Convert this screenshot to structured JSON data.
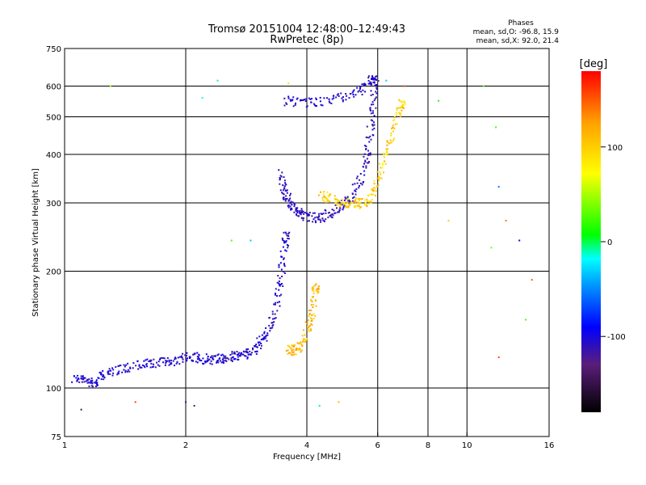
{
  "chart_data": {
    "type": "scatter",
    "title": "Tromsø 20151004 12:48:00–12:49:43",
    "subtitle": "RwPretec (8p)",
    "stats": {
      "heading": "Phases",
      "line_o": "mean, sd,O: -96.8, 15.9",
      "line_x": "mean, sd,X:  92.0, 21.4"
    },
    "xlabel": "Frequency [MHz]",
    "ylabel": "Stationary phase Virtual Height [km]",
    "x_scale": "log",
    "y_scale": "log",
    "xlim": [
      1,
      16
    ],
    "ylim": [
      75,
      750
    ],
    "x_ticks": [
      {
        "v": 1,
        "label": "1"
      },
      {
        "v": 2,
        "label": "2"
      },
      {
        "v": 4,
        "label": "4"
      },
      {
        "v": 6,
        "label": "6"
      },
      {
        "v": 8,
        "label": "8"
      },
      {
        "v": 10,
        "label": "10"
      },
      {
        "v": 16,
        "label": "16"
      }
    ],
    "y_ticks": [
      {
        "v": 75,
        "label": "75"
      },
      {
        "v": 100,
        "label": "100"
      },
      {
        "v": 200,
        "label": "200"
      },
      {
        "v": 300,
        "label": "300"
      },
      {
        "v": 400,
        "label": "400"
      },
      {
        "v": 500,
        "label": "500"
      },
      {
        "v": 600,
        "label": "600"
      },
      {
        "v": 750,
        "label": "750"
      }
    ],
    "x_gridlines": [
      2,
      4,
      6,
      8,
      10
    ],
    "y_gridlines": [
      100,
      200,
      300,
      400,
      500,
      600
    ],
    "grid": true,
    "colorbar": {
      "label": "[deg]",
      "range": [
        -180,
        180
      ],
      "ticks": [
        {
          "v": 100,
          "label": "100"
        },
        {
          "v": 0,
          "label": "0"
        },
        {
          "v": -100,
          "label": "-100"
        }
      ],
      "colors": [
        "#000000",
        "#5a1e7a",
        "#0000ff",
        "#00a0ff",
        "#00ffff",
        "#00ff00",
        "#ffff00",
        "#ffa000",
        "#ff0000"
      ]
    },
    "series": [
      {
        "key": "o_low",
        "phase": -105,
        "spread": 14,
        "points": [
          [
            1.05,
            106
          ],
          [
            1.1,
            105
          ],
          [
            1.15,
            104
          ],
          [
            1.2,
            103
          ],
          [
            1.25,
            108
          ],
          [
            1.3,
            110
          ],
          [
            1.4,
            112
          ],
          [
            1.5,
            114
          ],
          [
            1.6,
            115
          ],
          [
            1.7,
            116
          ],
          [
            1.8,
            117
          ],
          [
            1.9,
            118
          ],
          [
            2.0,
            120
          ],
          [
            2.1,
            120
          ],
          [
            2.2,
            119
          ],
          [
            2.3,
            118
          ],
          [
            2.4,
            118
          ],
          [
            2.5,
            119
          ],
          [
            2.6,
            120
          ],
          [
            2.7,
            121
          ],
          [
            2.8,
            122
          ],
          [
            2.9,
            124
          ],
          [
            3.0,
            128
          ],
          [
            3.1,
            133
          ],
          [
            3.2,
            140
          ],
          [
            3.3,
            152
          ],
          [
            3.4,
            175
          ],
          [
            3.45,
            195
          ],
          [
            3.5,
            215
          ],
          [
            3.55,
            245
          ]
        ]
      },
      {
        "key": "o_f2",
        "phase": -110,
        "spread": 12,
        "points": [
          [
            3.45,
            355
          ],
          [
            3.5,
            330
          ],
          [
            3.55,
            315
          ],
          [
            3.6,
            305
          ],
          [
            3.7,
            293
          ],
          [
            3.8,
            286
          ],
          [
            3.9,
            280
          ],
          [
            4.0,
            276
          ],
          [
            4.2,
            274
          ],
          [
            4.4,
            276
          ],
          [
            4.6,
            282
          ],
          [
            4.8,
            290
          ],
          [
            5.0,
            300
          ],
          [
            5.2,
            315
          ],
          [
            5.4,
            340
          ],
          [
            5.6,
            380
          ],
          [
            5.7,
            420
          ],
          [
            5.8,
            480
          ],
          [
            5.85,
            530
          ],
          [
            5.9,
            620
          ]
        ]
      },
      {
        "key": "x_low",
        "phase": 110,
        "spread": 20,
        "points": [
          [
            3.6,
            125
          ],
          [
            3.7,
            125
          ],
          [
            3.8,
            127
          ],
          [
            3.9,
            130
          ],
          [
            4.0,
            140
          ],
          [
            4.1,
            150
          ],
          [
            4.15,
            165
          ],
          [
            4.2,
            180
          ]
        ]
      },
      {
        "key": "x_f2",
        "phase": 100,
        "spread": 25,
        "points": [
          [
            4.3,
            320
          ],
          [
            4.5,
            310
          ],
          [
            4.7,
            305
          ],
          [
            4.9,
            300
          ],
          [
            5.1,
            300
          ],
          [
            5.3,
            300
          ],
          [
            5.5,
            298
          ],
          [
            5.7,
            310
          ],
          [
            5.9,
            330
          ],
          [
            6.1,
            360
          ],
          [
            6.3,
            400
          ],
          [
            6.5,
            450
          ],
          [
            6.7,
            500
          ],
          [
            6.9,
            540
          ]
        ]
      },
      {
        "key": "upper_echo",
        "phase": -105,
        "spread": 10,
        "points": [
          [
            3.5,
            550
          ],
          [
            3.8,
            545
          ],
          [
            4.1,
            545
          ],
          [
            4.5,
            550
          ],
          [
            4.9,
            560
          ],
          [
            5.3,
            580
          ],
          [
            5.6,
            600
          ],
          [
            5.8,
            620
          ]
        ]
      },
      {
        "key": "scattered",
        "phase": 0,
        "spread": 160,
        "points": [
          [
            1.3,
            600
          ],
          [
            2.2,
            560
          ],
          [
            2.4,
            620
          ],
          [
            2.6,
            240
          ],
          [
            2.9,
            240
          ],
          [
            3.6,
            610
          ],
          [
            6.3,
            620
          ],
          [
            7.0,
            600
          ],
          [
            8.5,
            550
          ],
          [
            9.0,
            270
          ],
          [
            11.5,
            230
          ],
          [
            12.0,
            330
          ],
          [
            12.5,
            270
          ],
          [
            13.5,
            240
          ],
          [
            11.0,
            600
          ],
          [
            12.0,
            120
          ],
          [
            14.0,
            150
          ],
          [
            14.5,
            190
          ],
          [
            11.8,
            470
          ],
          [
            1.1,
            88
          ],
          [
            1.5,
            92
          ],
          [
            2.1,
            90
          ],
          [
            4.3,
            90
          ],
          [
            4.8,
            92
          ],
          [
            2.0,
            92
          ]
        ]
      }
    ]
  }
}
